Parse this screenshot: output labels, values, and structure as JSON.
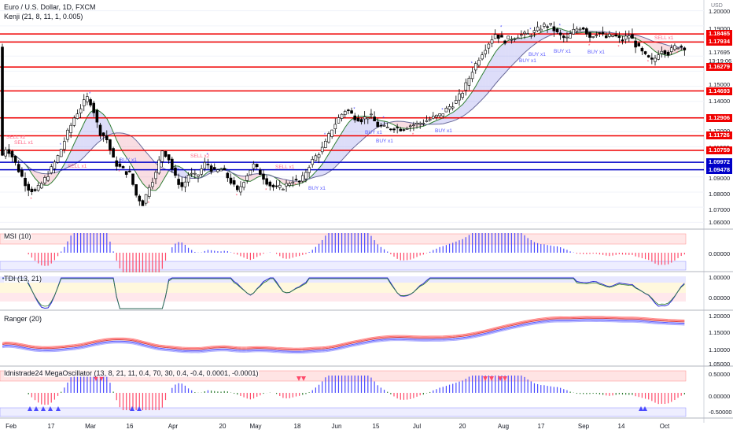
{
  "header": {
    "symbol_line": "Euro / U.S. Dollar, 1D, FXCM",
    "indicator_line": "Kenji (21, 8, 11, 1, 0.005)",
    "currency": "USD"
  },
  "price_axis": {
    "ticks": [
      "1.20000",
      "1.19000",
      "1.17695",
      "13:19:06",
      "1.15000",
      "1.14000",
      "1.12000",
      "1.11000",
      "1.10000",
      "1.09000",
      "1.08000",
      "1.07000",
      "1.06000"
    ]
  },
  "price_tags": [
    {
      "label": "1.18465",
      "color": "#f00000"
    },
    {
      "label": "1.17934",
      "color": "#f00000"
    },
    {
      "label": "1.16279",
      "color": "#f00000"
    },
    {
      "label": "1.14693",
      "color": "#f00000"
    },
    {
      "label": "1.12906",
      "color": "#f00000"
    },
    {
      "label": "1.11726",
      "color": "#f00000"
    },
    {
      "label": "1.10759",
      "color": "#f00000"
    },
    {
      "label": "1.09972",
      "color": "#0000c8"
    },
    {
      "label": "1.09478",
      "color": "#0000c8"
    }
  ],
  "chart_annotations": {
    "sell_labels": [
      "SELL x2",
      "SELL x1",
      "SELL x1",
      "SELL x2",
      "SELL x1",
      "SELL x1"
    ],
    "buy_labels": [
      "BUY x1",
      "BUY x1",
      "BUY x1",
      "BUY x1",
      "BUY x1",
      "BUY x1",
      "BUY x1",
      "BUY x1",
      "BUY x1"
    ]
  },
  "panes": [
    {
      "label": "MSI (10)",
      "axis": [
        "0.00000"
      ]
    },
    {
      "label": "TDI (13, 21)",
      "axis": [
        "1.00000",
        "0.00000"
      ]
    },
    {
      "label": "Ranger (20)",
      "axis": [
        "1.20000",
        "1.15000",
        "1.10000",
        "1.05000"
      ]
    },
    {
      "label": "Idnistrade24 MegaOscillator (13, 8, 21, 11, 0.4, 70, 30, 0.4, -0.4, 0.0001, -0.0001)",
      "axis": [
        "0.50000",
        "0.00000",
        "-0.50000"
      ]
    }
  ],
  "time_axis": [
    "Feb",
    "17",
    "Mar",
    "16",
    "Apr",
    "20",
    "May",
    "18",
    "Jun",
    "15",
    "Jul",
    "20",
    "Aug",
    "17",
    "Sep",
    "14",
    "Oct"
  ],
  "colors": {
    "up": "#ffffff",
    "down": "#000000",
    "resistance": "#f00000",
    "support": "#0000c8",
    "buy": "#4a4aff",
    "sell": "#ff4a6a"
  }
}
